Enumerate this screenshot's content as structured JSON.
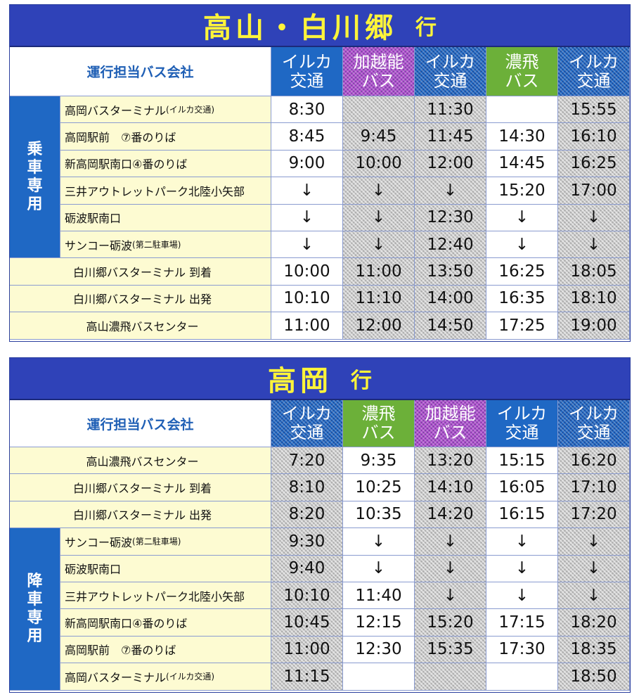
{
  "table1": {
    "title": "高山・白川郷",
    "direction": "行",
    "header_label": "運行担当バス会社",
    "section_label": "乗車専用",
    "companies": [
      {
        "line1": "イルカ",
        "line2": "交通",
        "type": "iruka"
      },
      {
        "line1": "加越能",
        "line2": "バス",
        "type": "kaetsu"
      },
      {
        "line1": "イルカ",
        "line2": "交通",
        "type": "iruka"
      },
      {
        "line1": "濃飛",
        "line2": "バス",
        "type": "nohi"
      },
      {
        "line1": "イルカ",
        "line2": "交通",
        "type": "iruka"
      }
    ],
    "hatched_columns": [
      1,
      2,
      4
    ],
    "rows": [
      {
        "stop": "高岡バスターミナル",
        "note": "(イルカ交通)",
        "times": [
          "8:30",
          "",
          "11:30",
          "",
          "15:55"
        ]
      },
      {
        "stop": "高岡駅前　⑦番のりば",
        "note": "",
        "times": [
          "8:45",
          "9:45",
          "11:45",
          "14:30",
          "16:10"
        ]
      },
      {
        "stop": "新高岡駅南口④番のりば",
        "note": "",
        "times": [
          "9:00",
          "10:00",
          "12:00",
          "14:45",
          "16:25"
        ]
      },
      {
        "stop": "三井アウトレットパーク北陸小矢部",
        "note": "",
        "times": [
          "↓",
          "↓",
          "↓",
          "15:20",
          "17:00"
        ]
      },
      {
        "stop": "砺波駅南口",
        "note": "",
        "times": [
          "↓",
          "↓",
          "12:30",
          "↓",
          "↓"
        ]
      },
      {
        "stop": "サンコー砺波",
        "note": "(第二駐車場)",
        "times": [
          "↓",
          "↓",
          "12:40",
          "↓",
          "↓"
        ]
      },
      {
        "stop": "白川郷バスターミナル 到着",
        "note": "",
        "times": [
          "10:00",
          "11:00",
          "13:50",
          "16:25",
          "18:05"
        ]
      },
      {
        "stop": "白川郷バスターミナル 出発",
        "note": "",
        "times": [
          "10:10",
          "11:10",
          "14:00",
          "16:35",
          "18:10"
        ]
      },
      {
        "stop": "高山濃飛バスセンター",
        "note": "",
        "times": [
          "11:00",
          "12:00",
          "14:50",
          "17:25",
          "19:00"
        ]
      }
    ]
  },
  "table2": {
    "title": "高岡",
    "direction": "行",
    "header_label": "運行担当バス会社",
    "section_label": "降車専用",
    "companies": [
      {
        "line1": "イルカ",
        "line2": "交通",
        "type": "iruka"
      },
      {
        "line1": "濃飛",
        "line2": "バス",
        "type": "nohi"
      },
      {
        "line1": "加越能",
        "line2": "バス",
        "type": "kaetsu"
      },
      {
        "line1": "イルカ",
        "line2": "交通",
        "type": "iruka"
      },
      {
        "line1": "イルカ",
        "line2": "交通",
        "type": "iruka"
      }
    ],
    "hatched_columns": [
      0,
      2,
      4
    ],
    "rows": [
      {
        "stop": "高山濃飛バスセンター",
        "note": "",
        "times": [
          "7:20",
          "9:35",
          "13:20",
          "15:15",
          "16:20"
        ]
      },
      {
        "stop": "白川郷バスターミナル 到着",
        "note": "",
        "times": [
          "8:10",
          "10:25",
          "14:10",
          "16:05",
          "17:10"
        ]
      },
      {
        "stop": "白川郷バスターミナル 出発",
        "note": "",
        "times": [
          "8:20",
          "10:35",
          "14:20",
          "16:15",
          "17:20"
        ]
      },
      {
        "stop": "サンコー砺波",
        "note": "(第二駐車場)",
        "times": [
          "9:30",
          "↓",
          "↓",
          "↓",
          "↓"
        ]
      },
      {
        "stop": "砺波駅南口",
        "note": "",
        "times": [
          "9:40",
          "↓",
          "↓",
          "↓",
          "↓"
        ]
      },
      {
        "stop": "三井アウトレットパーク北陸小矢部",
        "note": "",
        "times": [
          "10:10",
          "11:40",
          "↓",
          "↓",
          "↓"
        ]
      },
      {
        "stop": "新高岡駅南口④番のりば",
        "note": "",
        "times": [
          "10:45",
          "12:15",
          "15:20",
          "17:15",
          "18:20"
        ]
      },
      {
        "stop": "高岡駅前　⑦番のりば",
        "note": "",
        "times": [
          "11:00",
          "12:30",
          "15:35",
          "17:30",
          "18:35"
        ]
      },
      {
        "stop": "高岡バスターミナル",
        "note": "(イルカ交通)",
        "times": [
          "11:15",
          "",
          "",
          "",
          "18:50"
        ]
      }
    ]
  }
}
